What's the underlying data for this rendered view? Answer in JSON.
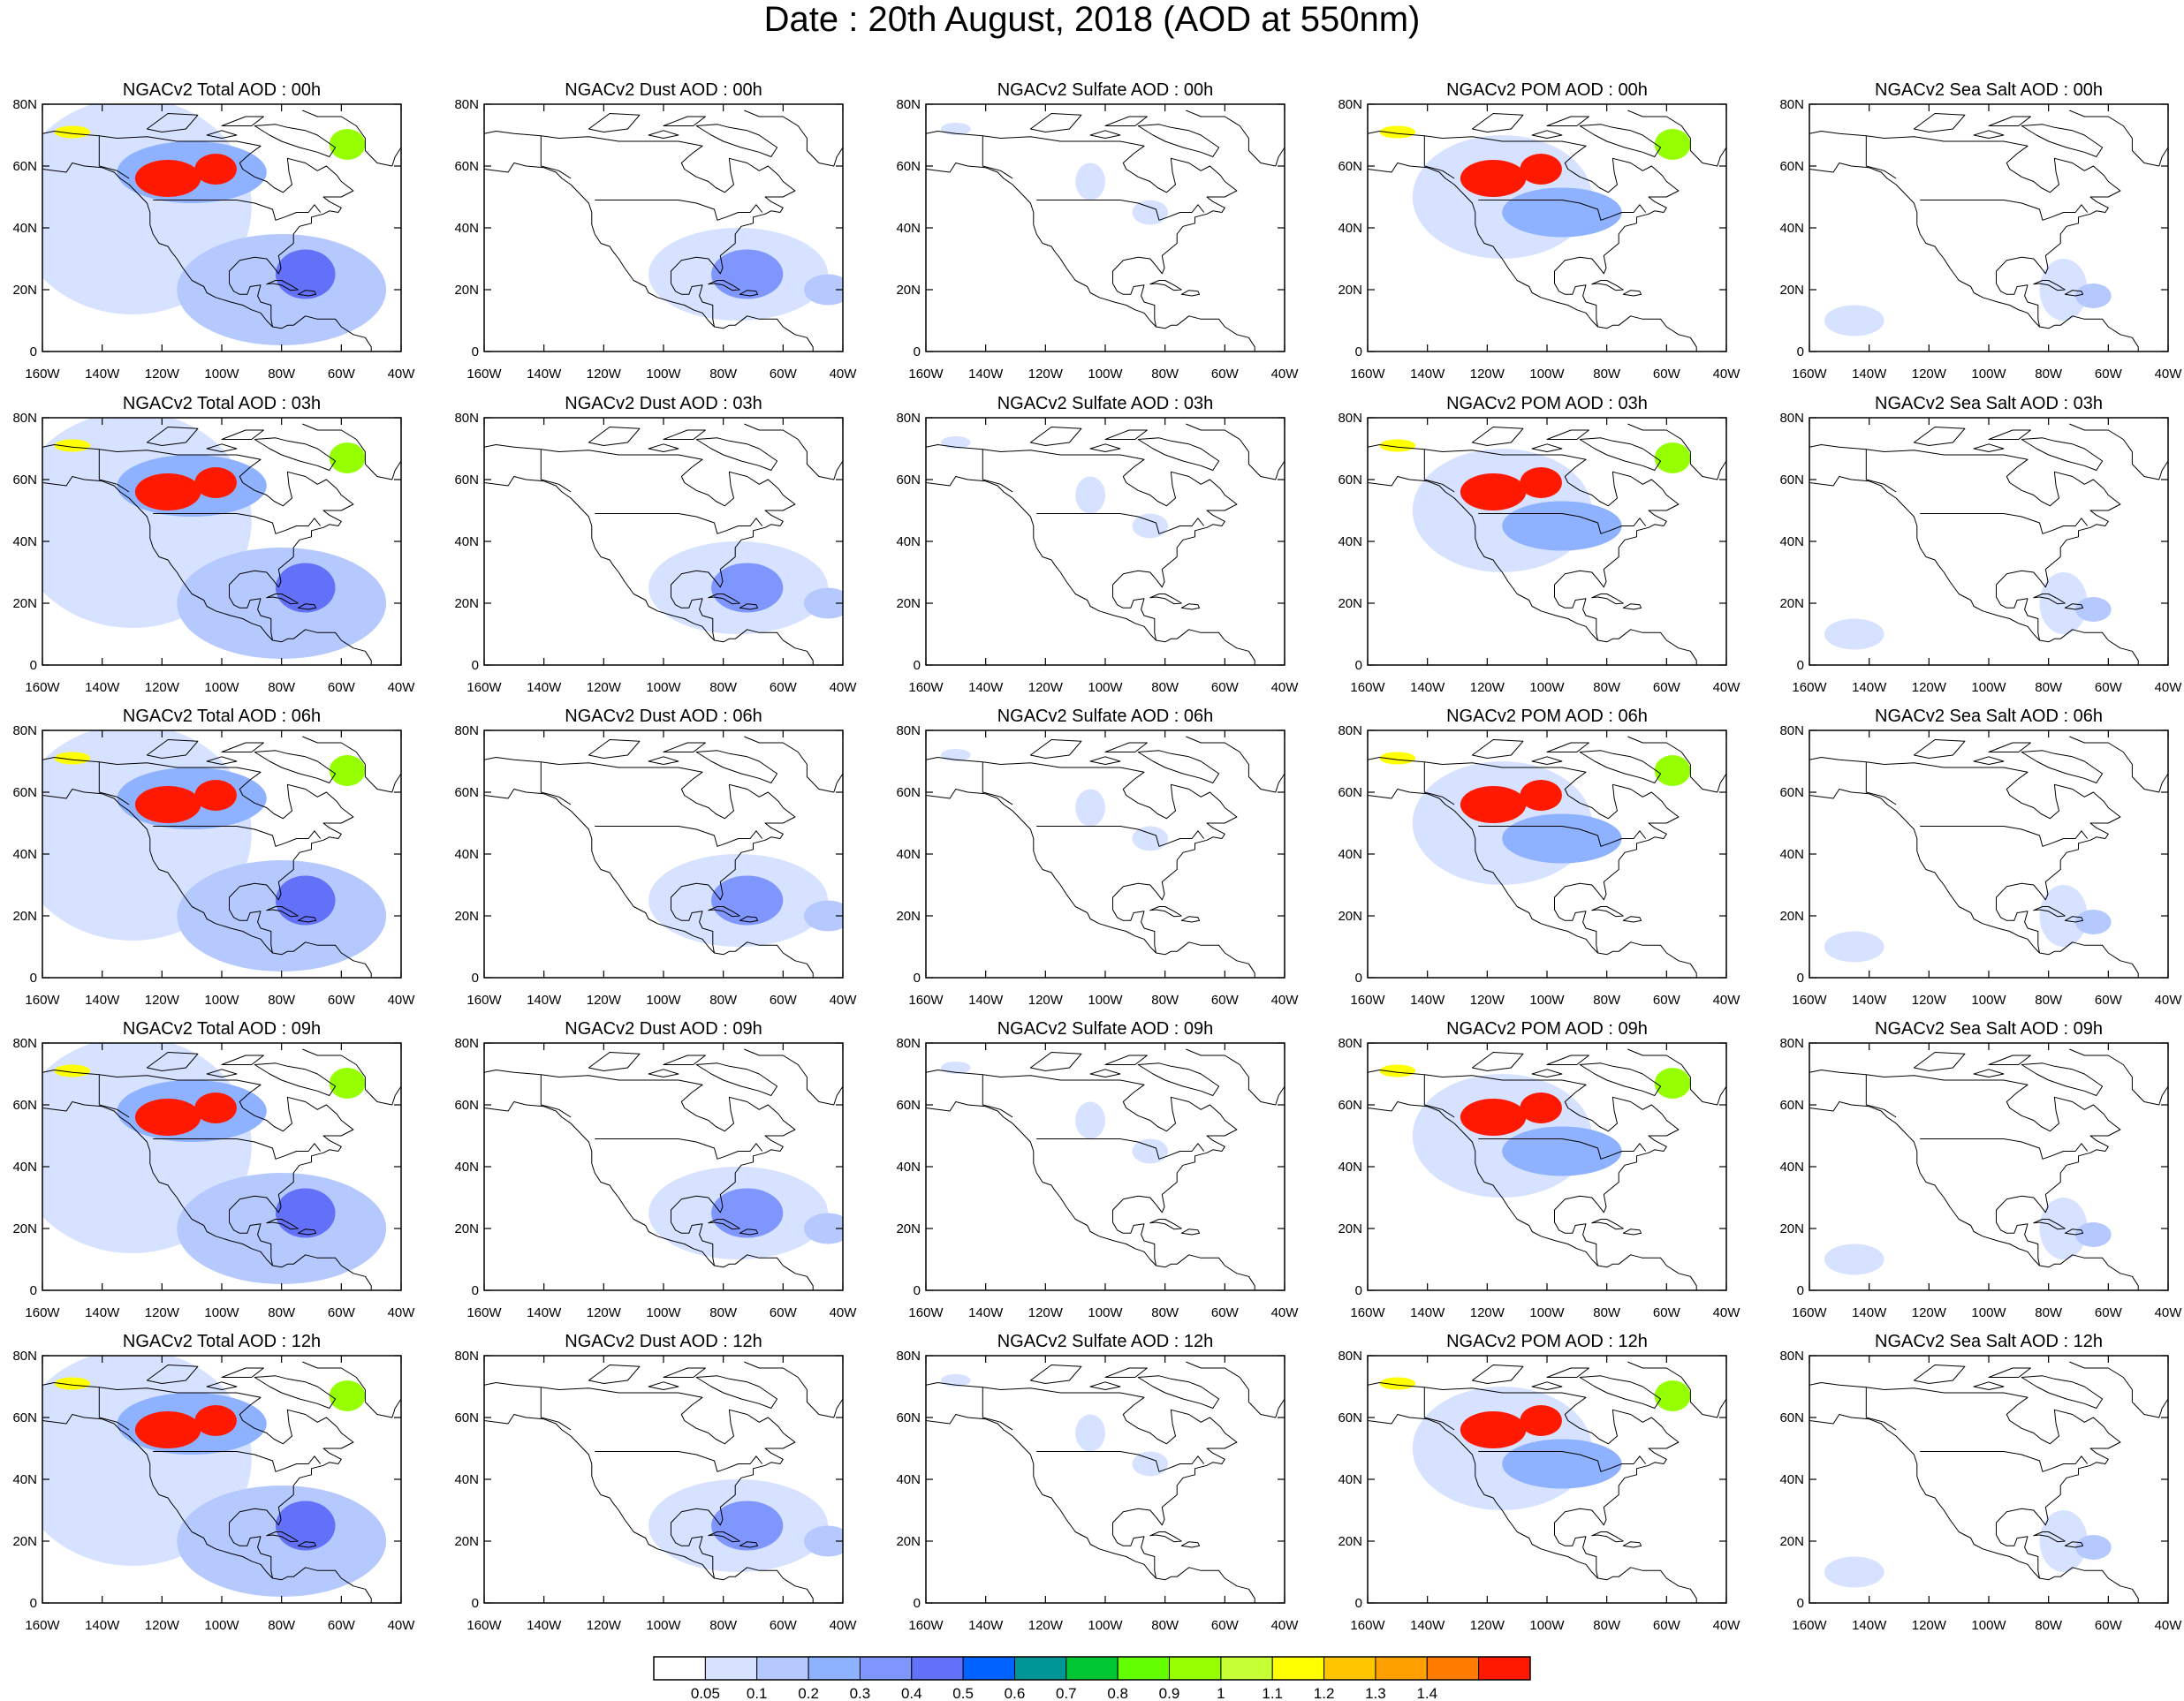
{
  "title": "Date : 20th August, 2018 (AOD at 550nm)",
  "panel_titles": [
    [
      "NGACv2 Total AOD : 00h",
      "NGACv2 Dust AOD : 00h",
      "NGACv2 Sulfate AOD : 00h",
      "NGACv2 POM AOD : 00h",
      "NGACv2 Sea Salt AOD : 00h"
    ],
    [
      "NGACv2 Total AOD : 03h",
      "NGACv2 Dust AOD : 03h",
      "NGACv2 Sulfate AOD : 03h",
      "NGACv2 POM AOD : 03h",
      "NGACv2 Sea Salt AOD : 03h"
    ],
    [
      "NGACv2 Total AOD : 06h",
      "NGACv2 Dust AOD : 06h",
      "NGACv2 Sulfate AOD : 06h",
      "NGACv2 POM AOD : 06h",
      "NGACv2 Sea Salt AOD : 06h"
    ],
    [
      "NGACv2 Total AOD : 09h",
      "NGACv2 Dust AOD : 09h",
      "NGACv2 Sulfate AOD : 09h",
      "NGACv2 POM AOD : 09h",
      "NGACv2 Sea Salt  AOD : 09h"
    ],
    [
      "NGACv2 Total AOD  : 12h",
      "NGACv2 Dust AOD : 12h",
      "NGACv2 Sulfate AOD : 12h",
      "NGACv2 POM  AOD : 12h",
      "NGACv2 Sea Salt  AOD : 12h"
    ]
  ],
  "lon_ticks": [
    "160W",
    "140W",
    "120W",
    "100W",
    "80W",
    "60W",
    "40W"
  ],
  "lat_ticks": [
    "0",
    "20N",
    "40N",
    "60N",
    "80N"
  ],
  "map_extent": {
    "lon_min": -160,
    "lon_max": -40,
    "lat_min": 0,
    "lat_max": 80
  },
  "colorbar": {
    "colors": [
      "#ffffff",
      "#d6e2ff",
      "#b5c9ff",
      "#8eb2ff",
      "#7f96ff",
      "#6370f8",
      "#0063ff",
      "#009696",
      "#00c633",
      "#63ff00",
      "#96ff00",
      "#c6ff33",
      "#ffff00",
      "#ffc600",
      "#ffa000",
      "#ff7c00",
      "#ff1900"
    ],
    "labels": [
      "0.05",
      "0.1",
      "0.2",
      "0.3",
      "0.4",
      "0.5",
      "0.6",
      "0.7",
      "0.8",
      "0.9",
      "1",
      "1.1",
      "1.2",
      "1.3",
      "1.4"
    ]
  },
  "species": [
    "Total",
    "Dust",
    "Sulfate",
    "POM",
    "Sea Salt"
  ],
  "colors": {
    "coast": "#000000",
    "frame": "#000000"
  },
  "aod_fields": {
    "Total": [
      {
        "lon": -130,
        "lat": 47,
        "rx": 40,
        "ry": 35,
        "level": 1
      },
      {
        "lon": -80,
        "lat": 20,
        "rx": 35,
        "ry": 18,
        "level": 2
      },
      {
        "lon": -110,
        "lat": 58,
        "rx": 25,
        "ry": 10,
        "level": 3
      },
      {
        "lon": -72,
        "lat": 25,
        "rx": 10,
        "ry": 8,
        "level": 5
      },
      {
        "lon": -118,
        "lat": 56,
        "rx": 11,
        "ry": 6,
        "level": 16
      },
      {
        "lon": -102,
        "lat": 59,
        "rx": 7,
        "ry": 5,
        "level": 16
      },
      {
        "lon": -58,
        "lat": 67,
        "rx": 6,
        "ry": 5,
        "level": 10
      },
      {
        "lon": -150,
        "lat": 71,
        "rx": 6,
        "ry": 2,
        "level": 12
      }
    ],
    "Dust": [
      {
        "lon": -75,
        "lat": 25,
        "rx": 30,
        "ry": 15,
        "level": 1
      },
      {
        "lon": -72,
        "lat": 25,
        "rx": 12,
        "ry": 8,
        "level": 4
      },
      {
        "lon": -45,
        "lat": 20,
        "rx": 8,
        "ry": 5,
        "level": 2
      }
    ],
    "Sulfate": [
      {
        "lon": -105,
        "lat": 55,
        "rx": 5,
        "ry": 6,
        "level": 1
      },
      {
        "lon": -85,
        "lat": 45,
        "rx": 6,
        "ry": 4,
        "level": 1
      },
      {
        "lon": -150,
        "lat": 72,
        "rx": 5,
        "ry": 2,
        "level": 1
      }
    ],
    "POM": [
      {
        "lon": -115,
        "lat": 50,
        "rx": 30,
        "ry": 20,
        "level": 1
      },
      {
        "lon": -95,
        "lat": 45,
        "rx": 20,
        "ry": 8,
        "level": 3
      },
      {
        "lon": -118,
        "lat": 56,
        "rx": 11,
        "ry": 6,
        "level": 16
      },
      {
        "lon": -102,
        "lat": 59,
        "rx": 7,
        "ry": 5,
        "level": 16
      },
      {
        "lon": -58,
        "lat": 67,
        "rx": 6,
        "ry": 5,
        "level": 10
      },
      {
        "lon": -150,
        "lat": 71,
        "rx": 6,
        "ry": 2,
        "level": 12
      }
    ],
    "Sea Salt": [
      {
        "lon": -145,
        "lat": 10,
        "rx": 10,
        "ry": 5,
        "level": 1
      },
      {
        "lon": -75,
        "lat": 20,
        "rx": 8,
        "ry": 10,
        "level": 1
      },
      {
        "lon": -65,
        "lat": 18,
        "rx": 6,
        "ry": 4,
        "level": 2
      }
    ]
  }
}
